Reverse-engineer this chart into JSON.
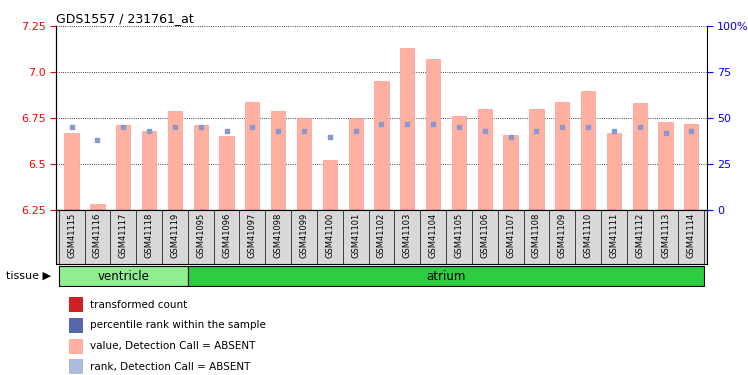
{
  "title": "GDS1557 / 231761_at",
  "samples": [
    "GSM41115",
    "GSM41116",
    "GSM41117",
    "GSM41118",
    "GSM41119",
    "GSM41095",
    "GSM41096",
    "GSM41097",
    "GSM41098",
    "GSM41099",
    "GSM41100",
    "GSM41101",
    "GSM41102",
    "GSM41103",
    "GSM41104",
    "GSM41105",
    "GSM41106",
    "GSM41107",
    "GSM41108",
    "GSM41109",
    "GSM41110",
    "GSM41111",
    "GSM41112",
    "GSM41113",
    "GSM41114"
  ],
  "pink_bar_values": [
    6.67,
    6.28,
    6.71,
    6.68,
    6.79,
    6.71,
    6.65,
    6.84,
    6.79,
    6.75,
    6.52,
    6.75,
    6.95,
    7.13,
    7.07,
    6.76,
    6.8,
    6.66,
    6.8,
    6.84,
    6.9,
    6.67,
    6.83,
    6.73,
    6.72
  ],
  "blue_square_values": [
    6.7,
    6.63,
    6.7,
    6.68,
    6.7,
    6.7,
    6.68,
    6.7,
    6.68,
    6.68,
    6.65,
    6.68,
    6.72,
    6.72,
    6.72,
    6.7,
    6.68,
    6.65,
    6.68,
    6.7,
    6.7,
    6.68,
    6.7,
    6.67,
    6.68
  ],
  "ylim": [
    6.25,
    7.25
  ],
  "yticks_left": [
    6.25,
    6.5,
    6.75,
    7.0,
    7.25
  ],
  "yticks_right": [
    0,
    25,
    50,
    75,
    100
  ],
  "tissue_colors": [
    "#90ee90",
    "#2ecc40"
  ],
  "bar_color": "#ffb0a0",
  "bar_edge_color": "#ff8888",
  "blue_color": "#8899cc",
  "red_marker_color": "#cc2222",
  "bg_color": "#ffffff",
  "plot_bg": "#ffffff",
  "legend_items": [
    {
      "label": "transformed count",
      "color": "#cc2222"
    },
    {
      "label": "percentile rank within the sample",
      "color": "#5566aa"
    },
    {
      "label": "value, Detection Call = ABSENT",
      "color": "#ffb0a0"
    },
    {
      "label": "rank, Detection Call = ABSENT",
      "color": "#aabbdd"
    }
  ]
}
